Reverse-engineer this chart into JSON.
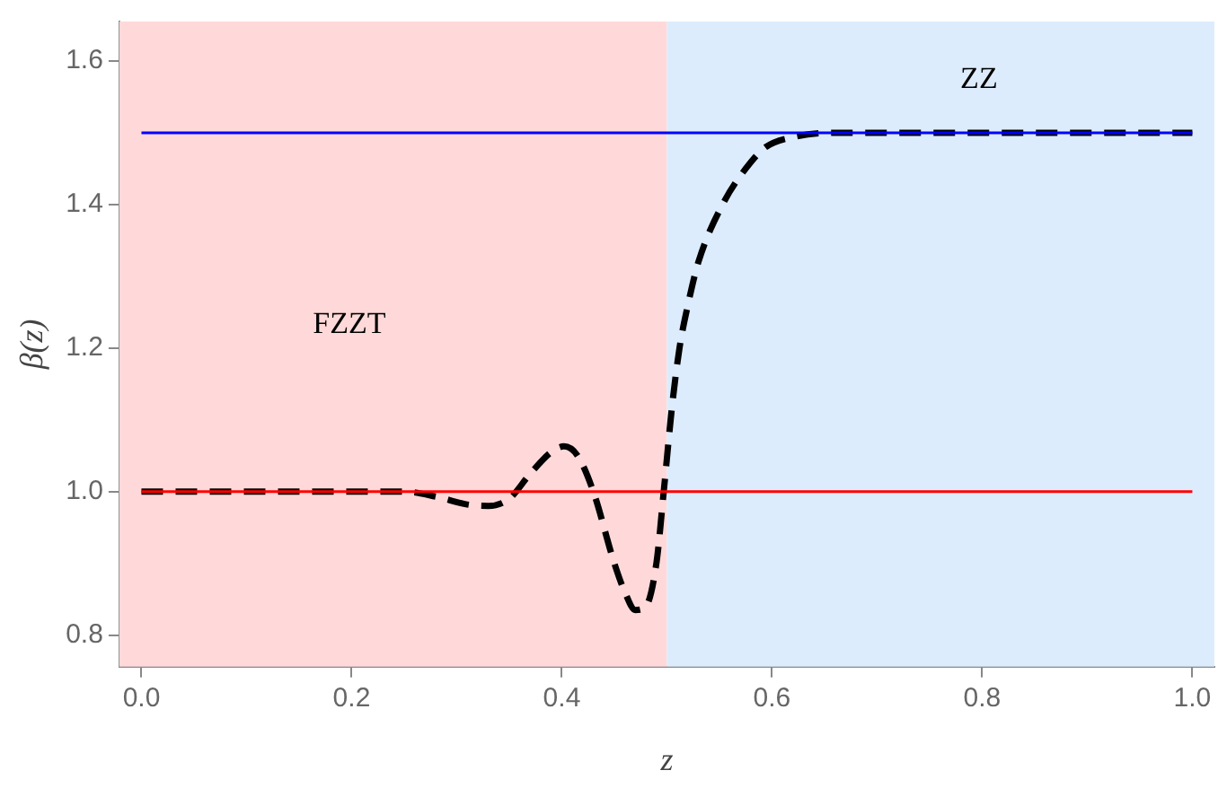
{
  "chart_data": {
    "type": "line",
    "xlabel": "z",
    "ylabel": "β(z)",
    "xlim": [
      -0.021,
      1.021
    ],
    "ylim": [
      0.756,
      1.655
    ],
    "xticks": [
      {
        "value": 0,
        "label": "0.0"
      },
      {
        "value": 0.2,
        "label": "0.2"
      },
      {
        "value": 0.4,
        "label": "0.4"
      },
      {
        "value": 0.6,
        "label": "0.6"
      },
      {
        "value": 0.8,
        "label": "0.8"
      },
      {
        "value": 1,
        "label": "1.0"
      }
    ],
    "yticks": [
      {
        "value": 0.8,
        "label": "0.8"
      },
      {
        "value": 1,
        "label": "1.0"
      },
      {
        "value": 1.2,
        "label": "1.2"
      },
      {
        "value": 1.4,
        "label": "1.4"
      },
      {
        "value": 1.6,
        "label": "1.6"
      }
    ],
    "grid": false,
    "legend": false,
    "marker": "none",
    "bands": [
      {
        "axis": "x",
        "from": -0.021,
        "to": 0.5,
        "label": "FZZT",
        "color": "#ffd9d9"
      },
      {
        "axis": "x",
        "from": 0.5,
        "to": 1.021,
        "label": "ZZ",
        "color": "#dcecfd"
      }
    ],
    "series": [
      {
        "color": "#ff0000",
        "line_style": "solid",
        "x": [
          0,
          1
        ],
        "values": [
          1,
          1
        ]
      },
      {
        "color": "#0000ff",
        "line_style": "solid",
        "x": [
          0,
          1
        ],
        "values": [
          1.5,
          1.5
        ]
      },
      {
        "color": "#000000",
        "line_style": "dashed",
        "x": [
          0,
          0.1,
          0.2,
          0.25,
          0.28,
          0.31,
          0.33,
          0.35,
          0.37,
          0.39,
          0.402,
          0.415,
          0.43,
          0.45,
          0.46,
          0.47,
          0.48,
          0.49,
          0.497,
          0.505,
          0.512,
          0.52,
          0.53,
          0.553,
          0.575,
          0.594,
          0.62,
          0.66,
          0.7,
          0.8,
          0.9,
          1
        ],
        "values": [
          1,
          1,
          1,
          1,
          0.993,
          0.982,
          0.98,
          0.99,
          1.025,
          1.055,
          1.063,
          1.05,
          1.0,
          0.9,
          0.86,
          0.835,
          0.84,
          0.9,
          1.0,
          1.12,
          1.2,
          1.26,
          1.32,
          1.4,
          1.45,
          1.48,
          1.494,
          1.5,
          1.5,
          1.5,
          1.5,
          1.5
        ]
      }
    ]
  }
}
